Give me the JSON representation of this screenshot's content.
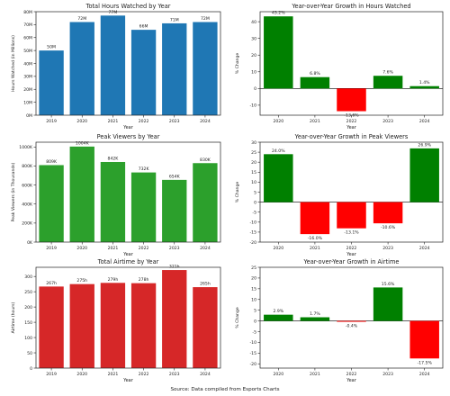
{
  "source_note": "Source: Data compiled from Esports Charts",
  "chart_data": [
    {
      "type": "bar",
      "title": "Total Hours Watched by Year",
      "xlabel": "Year",
      "ylabel": "Hours Watched (in Millions)",
      "categories": [
        "2019",
        "2020",
        "2021",
        "2022",
        "2023",
        "2024"
      ],
      "values": [
        50,
        72,
        77,
        66,
        71,
        72
      ],
      "data_labels": [
        "50M",
        "72M",
        "77M",
        "66M",
        "71M",
        "72M"
      ],
      "ylim": [
        0,
        80
      ],
      "yticks": [
        0,
        10,
        20,
        30,
        40,
        50,
        60,
        70,
        80
      ],
      "ytick_labels": [
        "0M",
        "10M",
        "20M",
        "30M",
        "40M",
        "50M",
        "60M",
        "70M",
        "80M"
      ],
      "color": "#1f77b4"
    },
    {
      "type": "bar",
      "title": "Year-over-Year Growth in Hours Watched",
      "xlabel": "Year",
      "ylabel": "% Change",
      "categories": [
        "2020",
        "2021",
        "2022",
        "2023",
        "2024"
      ],
      "values": [
        43.2,
        6.8,
        -13.6,
        7.6,
        1.4
      ],
      "data_labels": [
        "43.2%",
        "6.8%",
        "-13.6%",
        "7.6%",
        "1.4%"
      ],
      "ylim": [
        -16,
        46
      ],
      "yticks": [
        -10,
        0,
        10,
        20,
        30,
        40
      ],
      "positive_color": "#008000",
      "negative_color": "#ff0000"
    },
    {
      "type": "bar",
      "title": "Peak Viewers by Year",
      "xlabel": "Year",
      "ylabel": "Peak Viewers (in Thousands)",
      "categories": [
        "2019",
        "2020",
        "2021",
        "2022",
        "2023",
        "2024"
      ],
      "values": [
        809,
        1004,
        842,
        732,
        654,
        830
      ],
      "data_labels": [
        "809K",
        "1004K",
        "842K",
        "732K",
        "654K",
        "830K"
      ],
      "ylim": [
        0,
        1050
      ],
      "yticks": [
        0,
        200,
        400,
        600,
        800,
        1000
      ],
      "ytick_labels": [
        "0K",
        "200K",
        "400K",
        "600K",
        "800K",
        "1000K"
      ],
      "color": "#2ca02c"
    },
    {
      "type": "bar",
      "title": "Year-over-Year Growth in Peak Viewers",
      "xlabel": "Year",
      "ylabel": "% Change",
      "categories": [
        "2020",
        "2021",
        "2022",
        "2023",
        "2024"
      ],
      "values": [
        24.0,
        -16.0,
        -13.1,
        -10.6,
        26.9
      ],
      "data_labels": [
        "24.0%",
        "-16.0%",
        "-13.1%",
        "-10.6%",
        "26.9%"
      ],
      "ylim": [
        -20,
        30
      ],
      "yticks": [
        -20,
        -15,
        -10,
        -5,
        0,
        5,
        10,
        15,
        20,
        25,
        30
      ],
      "positive_color": "#008000",
      "negative_color": "#ff0000"
    },
    {
      "type": "bar",
      "title": "Total Airtime by Year",
      "xlabel": "Year",
      "ylabel": "Airtime (hours)",
      "categories": [
        "2019",
        "2020",
        "2021",
        "2022",
        "2023",
        "2024"
      ],
      "values": [
        267,
        275,
        279,
        278,
        321,
        265
      ],
      "data_labels": [
        "267h",
        "275h",
        "279h",
        "278h",
        "321h",
        "265h"
      ],
      "ylim": [
        0,
        330
      ],
      "yticks": [
        0,
        50,
        100,
        150,
        200,
        250,
        300
      ],
      "color": "#d62728"
    },
    {
      "type": "bar",
      "title": "Year-over-Year Growth in Airtime",
      "xlabel": "Year",
      "ylabel": "% Change",
      "categories": [
        "2020",
        "2021",
        "2022",
        "2023",
        "2024"
      ],
      "values": [
        2.9,
        1.7,
        -0.4,
        15.6,
        -17.5
      ],
      "data_labels": [
        "2.9%",
        "1.7%",
        "-0.4%",
        "15.6%",
        "-17.5%"
      ],
      "ylim": [
        -22,
        25
      ],
      "yticks": [
        -20,
        -15,
        -10,
        -5,
        0,
        5,
        10,
        15,
        20,
        25
      ],
      "positive_color": "#008000",
      "negative_color": "#ff0000"
    }
  ]
}
